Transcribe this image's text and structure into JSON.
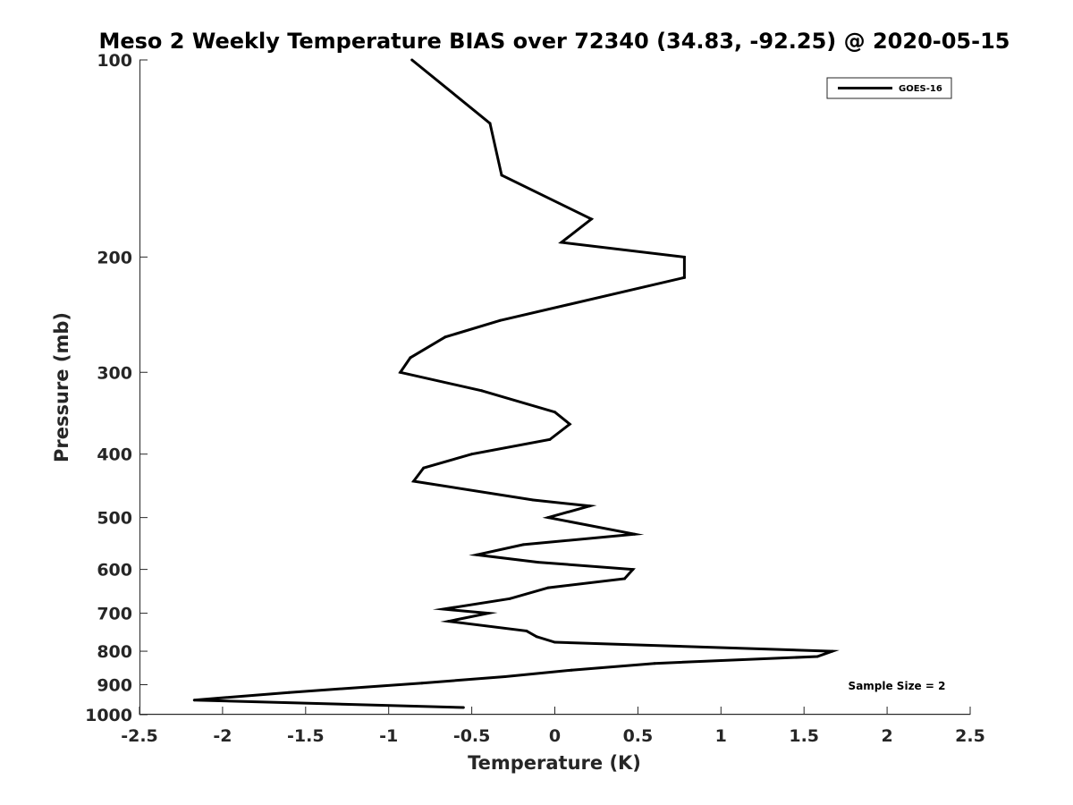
{
  "chart_data": {
    "type": "line",
    "title": "Meso 2 Weekly Temperature BIAS over 72340 (34.83, -92.25) @ 2020-05-15",
    "xlabel": "Temperature (K)",
    "ylabel": "Pressure (mb)",
    "xlim": [
      -2.5,
      2.5
    ],
    "ylim": [
      100,
      1000
    ],
    "y_scale": "log",
    "y_reversed": true,
    "x_ticks": [
      "-2.5",
      "-2",
      "-1.5",
      "-1",
      "-0.5",
      "0",
      "0.5",
      "1",
      "1.5",
      "2",
      "2.5"
    ],
    "y_ticks": [
      "100",
      "200",
      "300",
      "400",
      "500",
      "600",
      "700",
      "800",
      "900",
      "1000"
    ],
    "grid": false,
    "legend": "top-right",
    "annotation": "Sample Size = 2",
    "series": [
      {
        "name": "GOES-16",
        "color": "#000000",
        "points": [
          {
            "p": 100,
            "t": -0.86
          },
          {
            "p": 125,
            "t": -0.39
          },
          {
            "p": 150,
            "t": -0.32
          },
          {
            "p": 175,
            "t": 0.22
          },
          {
            "p": 190,
            "t": 0.04
          },
          {
            "p": 200,
            "t": 0.78
          },
          {
            "p": 215,
            "t": 0.78
          },
          {
            "p": 250,
            "t": -0.33
          },
          {
            "p": 265,
            "t": -0.66
          },
          {
            "p": 285,
            "t": -0.87
          },
          {
            "p": 300,
            "t": -0.93
          },
          {
            "p": 320,
            "t": -0.44
          },
          {
            "p": 345,
            "t": 0.0
          },
          {
            "p": 360,
            "t": 0.09
          },
          {
            "p": 380,
            "t": -0.03
          },
          {
            "p": 400,
            "t": -0.5
          },
          {
            "p": 420,
            "t": -0.79
          },
          {
            "p": 440,
            "t": -0.85
          },
          {
            "p": 470,
            "t": -0.13
          },
          {
            "p": 480,
            "t": 0.21
          },
          {
            "p": 500,
            "t": -0.04
          },
          {
            "p": 530,
            "t": 0.48
          },
          {
            "p": 550,
            "t": -0.19
          },
          {
            "p": 570,
            "t": -0.47
          },
          {
            "p": 585,
            "t": -0.1
          },
          {
            "p": 600,
            "t": 0.47
          },
          {
            "p": 620,
            "t": 0.42
          },
          {
            "p": 640,
            "t": -0.04
          },
          {
            "p": 665,
            "t": -0.27
          },
          {
            "p": 690,
            "t": -0.67
          },
          {
            "p": 700,
            "t": -0.4
          },
          {
            "p": 720,
            "t": -0.64
          },
          {
            "p": 745,
            "t": -0.17
          },
          {
            "p": 760,
            "t": -0.11
          },
          {
            "p": 775,
            "t": 0.0
          },
          {
            "p": 800,
            "t": 1.67
          },
          {
            "p": 815,
            "t": 1.58
          },
          {
            "p": 835,
            "t": 0.6
          },
          {
            "p": 855,
            "t": 0.1
          },
          {
            "p": 875,
            "t": -0.3
          },
          {
            "p": 895,
            "t": -0.8
          },
          {
            "p": 925,
            "t": -1.6
          },
          {
            "p": 950,
            "t": -2.17
          },
          {
            "p": 975,
            "t": -0.55
          }
        ]
      }
    ]
  }
}
